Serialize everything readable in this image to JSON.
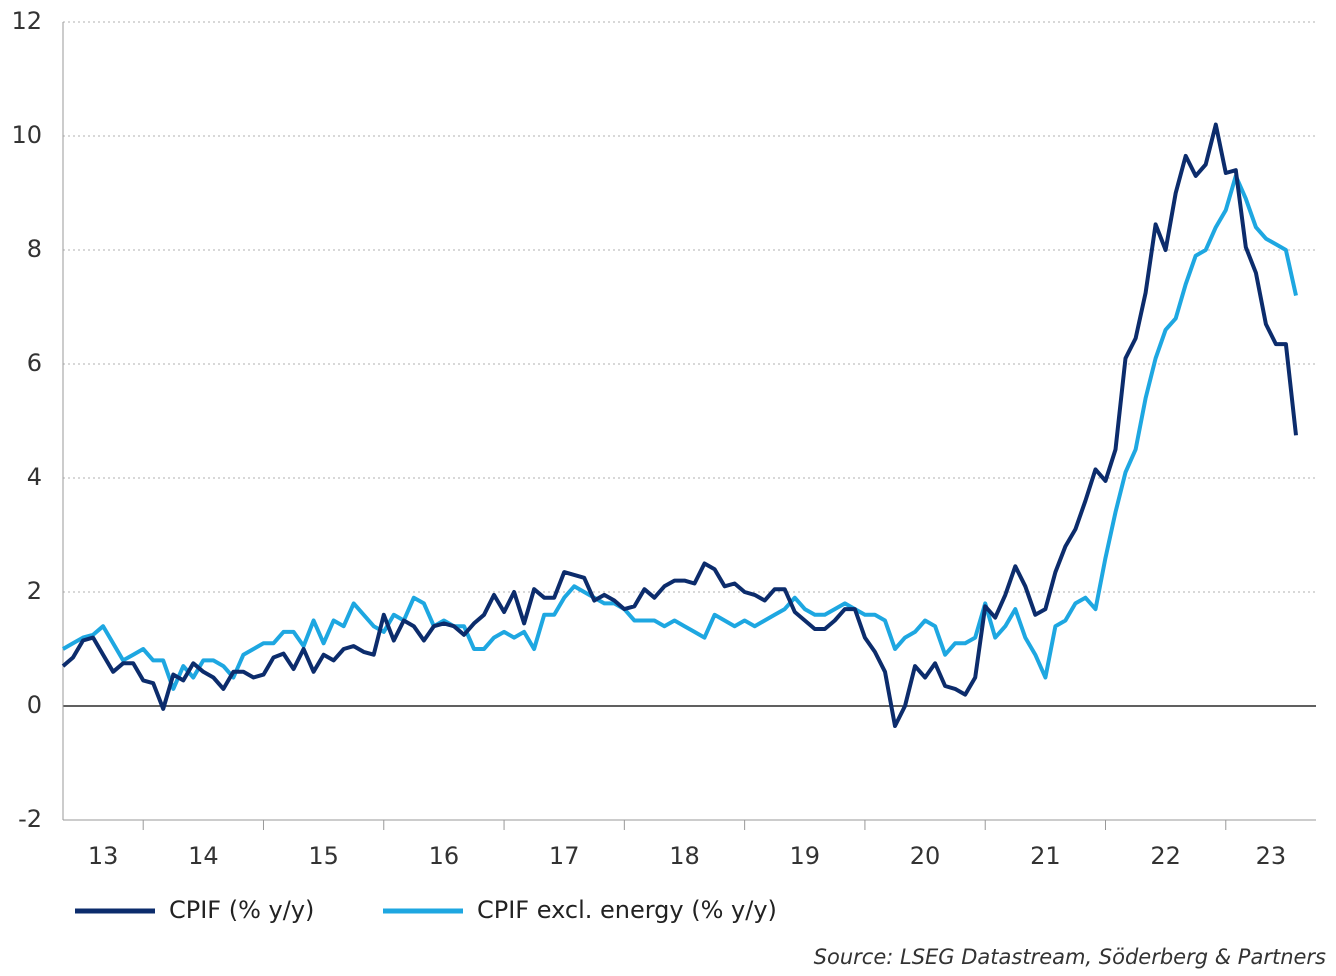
{
  "chart_data": {
    "type": "line",
    "categories": [
      null,
      null,
      null,
      null,
      null,
      null,
      null,
      null,
      null,
      null,
      null,
      null,
      null,
      null,
      null,
      null,
      null,
      null,
      null,
      null,
      null,
      null,
      null,
      null,
      null,
      null,
      null,
      null,
      null,
      null,
      null,
      null,
      null,
      null,
      null,
      null,
      null,
      null,
      null,
      null,
      null,
      null,
      null,
      null,
      null,
      null,
      null,
      null,
      null,
      null,
      null,
      null,
      null,
      null,
      null,
      null,
      null,
      null,
      null,
      null,
      null,
      null,
      null,
      null,
      null,
      null,
      null,
      null,
      null,
      null,
      null,
      null,
      null,
      null,
      null,
      null,
      null,
      null,
      null,
      null,
      null,
      null,
      null,
      null,
      null,
      null,
      null,
      null,
      null,
      null,
      null,
      null,
      null,
      null,
      null,
      null,
      null,
      null,
      null,
      null,
      null,
      null,
      null,
      null,
      null,
      null,
      null,
      null,
      null,
      null,
      null,
      null,
      null,
      null,
      null,
      null,
      null,
      null,
      null,
      null,
      null,
      null,
      null,
      null
    ],
    "year_labels": [
      "13",
      "14",
      "15",
      "16",
      "17",
      "18",
      "19",
      "20",
      "21",
      "22",
      "23"
    ],
    "series": [
      {
        "name": "CPIF (% y/y)",
        "color": "#0c2c6c",
        "values": [
          0.7,
          0.85,
          1.15,
          1.2,
          0.9,
          0.6,
          0.75,
          0.75,
          0.45,
          0.4,
          -0.05,
          0.55,
          0.45,
          0.75,
          0.6,
          0.5,
          0.3,
          0.6,
          0.6,
          0.5,
          0.55,
          0.85,
          0.92,
          0.65,
          1.0,
          0.6,
          0.9,
          0.8,
          1.0,
          1.05,
          0.95,
          0.9,
          1.6,
          1.15,
          1.5,
          1.4,
          1.15,
          1.4,
          1.45,
          1.4,
          1.25,
          1.45,
          1.6,
          1.95,
          1.65,
          2.0,
          1.45,
          2.05,
          1.9,
          1.9,
          2.35,
          2.3,
          2.25,
          1.85,
          1.95,
          1.85,
          1.7,
          1.75,
          2.05,
          1.9,
          2.1,
          2.2,
          2.2,
          2.15,
          2.5,
          2.4,
          2.1,
          2.15,
          2.0,
          1.95,
          1.85,
          2.05,
          2.05,
          1.65,
          1.5,
          1.35,
          1.35,
          1.5,
          1.7,
          1.7,
          1.2,
          0.95,
          0.6,
          -0.35,
          0.0,
          0.7,
          0.5,
          0.75,
          0.35,
          0.3,
          0.2,
          0.5,
          1.75,
          1.55,
          1.95,
          2.45,
          2.1,
          1.6,
          1.7,
          2.35,
          2.8,
          3.1,
          3.6,
          4.15,
          3.95,
          4.5,
          6.1,
          6.45,
          7.25,
          8.45,
          8.0,
          9.0,
          9.65,
          9.3,
          9.5,
          10.2,
          9.35,
          9.4,
          8.05,
          7.6,
          6.7,
          6.35,
          6.35,
          4.75
        ]
      },
      {
        "name": "CPIF excl. energy (% y/y)",
        "color": "#1ea7e1",
        "values": [
          1.0,
          1.1,
          1.2,
          1.25,
          1.4,
          1.1,
          0.8,
          0.9,
          1.0,
          0.8,
          0.8,
          0.3,
          0.7,
          0.5,
          0.8,
          0.8,
          0.7,
          0.5,
          0.9,
          1.0,
          1.1,
          1.1,
          1.3,
          1.3,
          1.05,
          1.5,
          1.1,
          1.5,
          1.4,
          1.8,
          1.6,
          1.4,
          1.3,
          1.6,
          1.5,
          1.9,
          1.8,
          1.4,
          1.5,
          1.4,
          1.4,
          1.0,
          1.0,
          1.2,
          1.3,
          1.2,
          1.3,
          1.0,
          1.6,
          1.6,
          1.9,
          2.1,
          2.0,
          1.9,
          1.8,
          1.8,
          1.7,
          1.5,
          1.5,
          1.5,
          1.4,
          1.5,
          1.4,
          1.3,
          1.2,
          1.6,
          1.5,
          1.4,
          1.5,
          1.4,
          1.5,
          1.6,
          1.7,
          1.9,
          1.7,
          1.6,
          1.6,
          1.7,
          1.8,
          1.7,
          1.6,
          1.6,
          1.5,
          1.0,
          1.2,
          1.3,
          1.5,
          1.4,
          0.9,
          1.1,
          1.1,
          1.2,
          1.8,
          1.2,
          1.4,
          1.7,
          1.2,
          0.9,
          0.5,
          1.4,
          1.5,
          1.8,
          1.9,
          1.7,
          2.6,
          3.4,
          4.1,
          4.5,
          5.4,
          6.1,
          6.6,
          6.8,
          7.4,
          7.9,
          8.0,
          8.4,
          8.7,
          9.3,
          8.9,
          8.4,
          8.2,
          8.1,
          8.0,
          7.2
        ]
      }
    ],
    "ylim": [
      -2,
      12
    ],
    "yticks": [
      -2,
      0,
      2,
      4,
      6,
      8,
      10,
      12
    ],
    "grid": true,
    "source": "Source: LSEG Datastream, Söderberg & Partners"
  }
}
